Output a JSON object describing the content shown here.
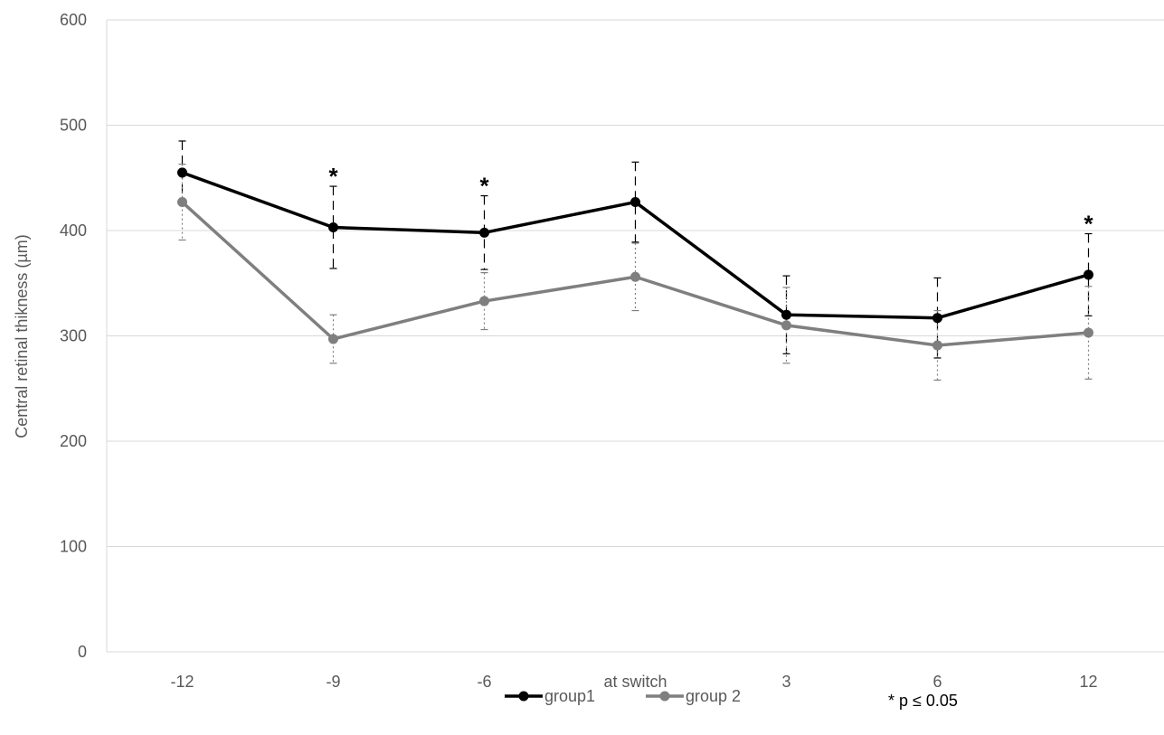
{
  "chart_data": {
    "type": "line",
    "title": "",
    "xlabel": "",
    "ylabel": "Central retinal thikness (µm)",
    "ylim": [
      0,
      600
    ],
    "yticks": [
      0,
      100,
      200,
      300,
      400,
      500,
      600
    ],
    "categories": [
      "-12",
      "-9",
      "-6",
      "at switch",
      "3",
      "6",
      "12"
    ],
    "grid": "horizontal",
    "legend_position": "bottom",
    "series": [
      {
        "name": "group1",
        "values": [
          455,
          403,
          398,
          427,
          320,
          317,
          358
        ],
        "error": [
          30,
          39,
          35,
          38,
          37,
          38,
          39
        ],
        "color": "#000000",
        "error_style": "dashed"
      },
      {
        "name": "group 2",
        "values": [
          427,
          297,
          333,
          356,
          310,
          291,
          303
        ],
        "error": [
          36,
          23,
          27,
          32,
          36,
          33,
          44
        ],
        "color": "#7f7f7f",
        "error_style": "dotted"
      }
    ],
    "significance_marker": "*",
    "significant_categories": [
      "-9",
      "-6",
      "12"
    ],
    "annotation": "* p ≤ 0.05"
  }
}
